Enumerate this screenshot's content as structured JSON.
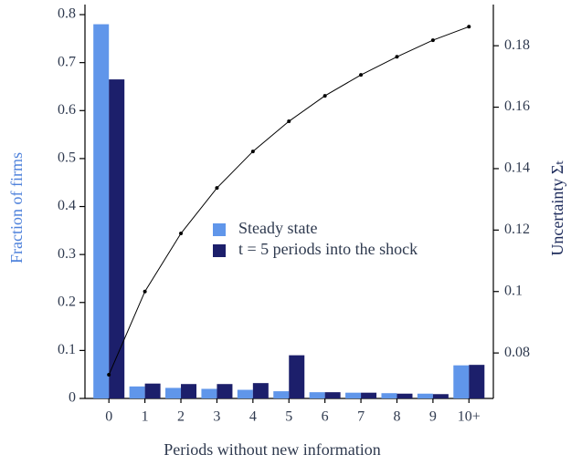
{
  "chart_data": {
    "type": "bar",
    "xlabel": "Periods without new information",
    "ylabel": "Fraction of firms",
    "y2label": "Uncertainty Σₜ",
    "categories": [
      "0",
      "1",
      "2",
      "3",
      "4",
      "5",
      "6",
      "7",
      "8",
      "9",
      "10+"
    ],
    "series": [
      {
        "name": "Steady state",
        "color": "#6096ea",
        "values": [
          0.78,
          0.025,
          0.022,
          0.02,
          0.018,
          0.015,
          0.013,
          0.012,
          0.011,
          0.01,
          0.069
        ]
      },
      {
        "name": "t = 5 periods into the shock",
        "color": "#1c1f6b",
        "values": [
          0.665,
          0.031,
          0.03,
          0.03,
          0.032,
          0.09,
          0.013,
          0.012,
          0.01,
          0.009,
          0.07
        ]
      },
      {
        "type": "line",
        "axis": "y2",
        "color": "#000000",
        "values": [
          0.0729,
          0.1,
          0.1189,
          0.1337,
          0.1456,
          0.1554,
          0.1637,
          0.1705,
          0.1764,
          0.1818,
          0.1862
        ]
      }
    ],
    "ylim": [
      0,
      0.821
    ],
    "yticks": [
      0,
      0.1,
      0.2,
      0.3,
      0.4,
      0.5,
      0.6,
      0.7,
      0.8
    ],
    "y2lim": [
      0.0652,
      0.1934
    ],
    "y2ticks": [
      0.08,
      0.1,
      0.12,
      0.14,
      0.16,
      0.18
    ],
    "ylabel_color": "#4f82db",
    "y2label_color": "#1c2a5a",
    "legend": "center"
  }
}
